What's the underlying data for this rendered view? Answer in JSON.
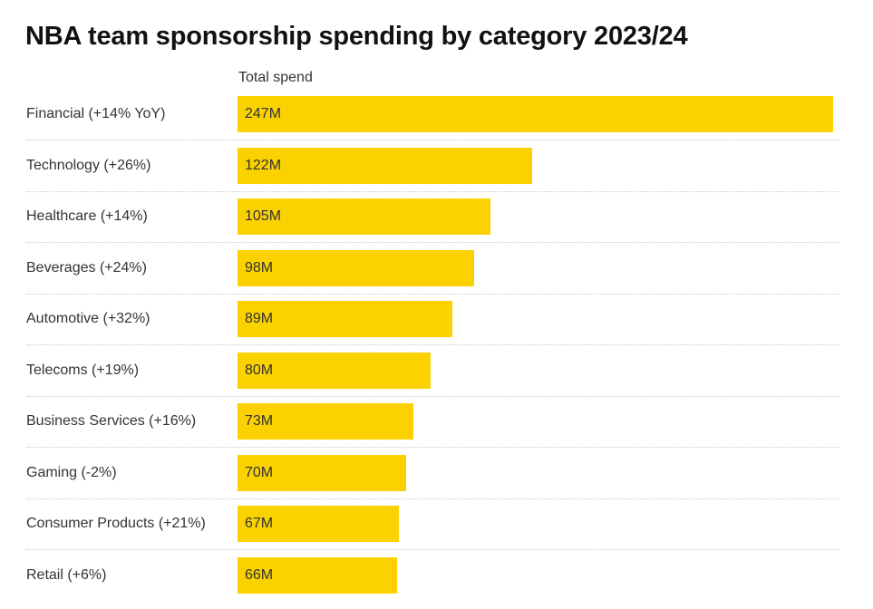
{
  "chart_data": {
    "type": "bar",
    "orientation": "horizontal",
    "title": "NBA team sponsorship spending by category 2023/24",
    "column_header": "Total spend",
    "categories": [
      "Financial (+14% YoY)",
      "Technology (+26%)",
      "Healthcare (+14%)",
      "Beverages (+24%)",
      "Automotive (+32%)",
      "Telecoms (+19%)",
      "Business Services (+16%)",
      "Gaming (-2%)",
      "Consumer Products (+21%)",
      "Retail (+6%)"
    ],
    "values": [
      247,
      122,
      105,
      98,
      89,
      80,
      73,
      70,
      67,
      66
    ],
    "value_labels": [
      "247M",
      "122M",
      "105M",
      "98M",
      "89M",
      "80M",
      "73M",
      "70M",
      "67M",
      "66M"
    ],
    "unit": "M",
    "bar_color": "#FBD200",
    "grid": false
  }
}
